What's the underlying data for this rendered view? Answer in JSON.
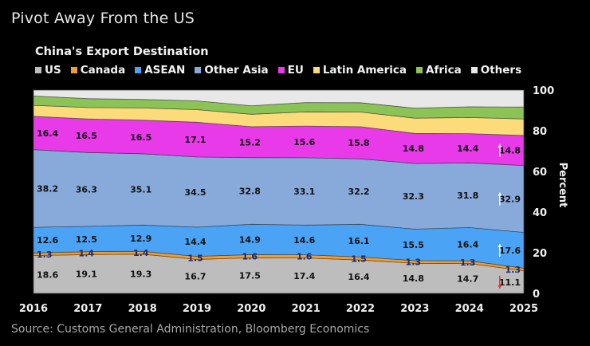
{
  "headline": "Pivot Away From the US",
  "source": "Source: Customs General Administration, Bloomberg Economics",
  "chart_data": {
    "type": "area",
    "stacked": true,
    "title": "China's Export Destination",
    "xlabel": "",
    "ylabel": "Percent",
    "ylim": [
      0,
      100
    ],
    "yticks": [
      0,
      20,
      40,
      60,
      80,
      100
    ],
    "y_axis_side": "right",
    "legend_position": "top-left",
    "grid": false,
    "categories": [
      "2016",
      "2017",
      "2018",
      "2019",
      "2020",
      "2021",
      "2022",
      "2023",
      "2024",
      "2025"
    ],
    "series": [
      {
        "name": "US",
        "color": "#bdbdbd",
        "labeled": true,
        "values": [
          18.6,
          19.1,
          19.3,
          16.7,
          17.5,
          17.4,
          16.4,
          14.8,
          14.7,
          11.1
        ]
      },
      {
        "name": "Canada",
        "color": "#f39c2f",
        "labeled": true,
        "values": [
          1.3,
          1.4,
          1.4,
          1.5,
          1.6,
          1.6,
          1.5,
          1.3,
          1.3,
          1.3
        ]
      },
      {
        "name": "ASEAN",
        "color": "#4aa3f5",
        "labeled": true,
        "values": [
          12.6,
          12.5,
          12.9,
          14.4,
          14.9,
          14.6,
          16.1,
          15.5,
          16.4,
          17.6
        ]
      },
      {
        "name": "Other Asia",
        "color": "#88aadb",
        "labeled": true,
        "values": [
          38.2,
          36.3,
          35.1,
          34.5,
          32.8,
          33.1,
          32.2,
          32.3,
          31.8,
          32.9
        ]
      },
      {
        "name": "EU",
        "color": "#e83ae8",
        "labeled": true,
        "values": [
          16.4,
          16.5,
          16.5,
          17.1,
          15.2,
          15.6,
          15.8,
          14.8,
          14.4,
          14.8
        ]
      },
      {
        "name": "Latin America",
        "color": "#fbdb7a",
        "labeled": false,
        "values": [
          5.4,
          5.6,
          6.0,
          6.2,
          6.1,
          7.0,
          7.2,
          7.5,
          7.9,
          8.1
        ]
      },
      {
        "name": "Africa",
        "color": "#8bc356",
        "labeled": false,
        "values": [
          4.6,
          4.4,
          4.2,
          4.3,
          4.2,
          4.6,
          4.6,
          4.9,
          5.3,
          5.9
        ]
      },
      {
        "name": "Others",
        "color": "#e8e8e8",
        "labeled": false,
        "values": [
          2.9,
          4.2,
          4.6,
          5.3,
          7.7,
          6.1,
          6.2,
          8.9,
          8.2,
          8.3
        ]
      }
    ],
    "annotations": [
      {
        "series": "EU",
        "direction": "up",
        "color": "#ffffff",
        "between": [
          "2024",
          "2025"
        ]
      },
      {
        "series": "Other Asia",
        "direction": "up",
        "color": "#ffffff",
        "between": [
          "2024",
          "2025"
        ]
      },
      {
        "series": "ASEAN",
        "direction": "up",
        "color": "#ffffff",
        "between": [
          "2024",
          "2025"
        ]
      },
      {
        "series": "US",
        "direction": "down",
        "color": "#e8302a",
        "between": [
          "2024",
          "2025"
        ]
      }
    ]
  }
}
